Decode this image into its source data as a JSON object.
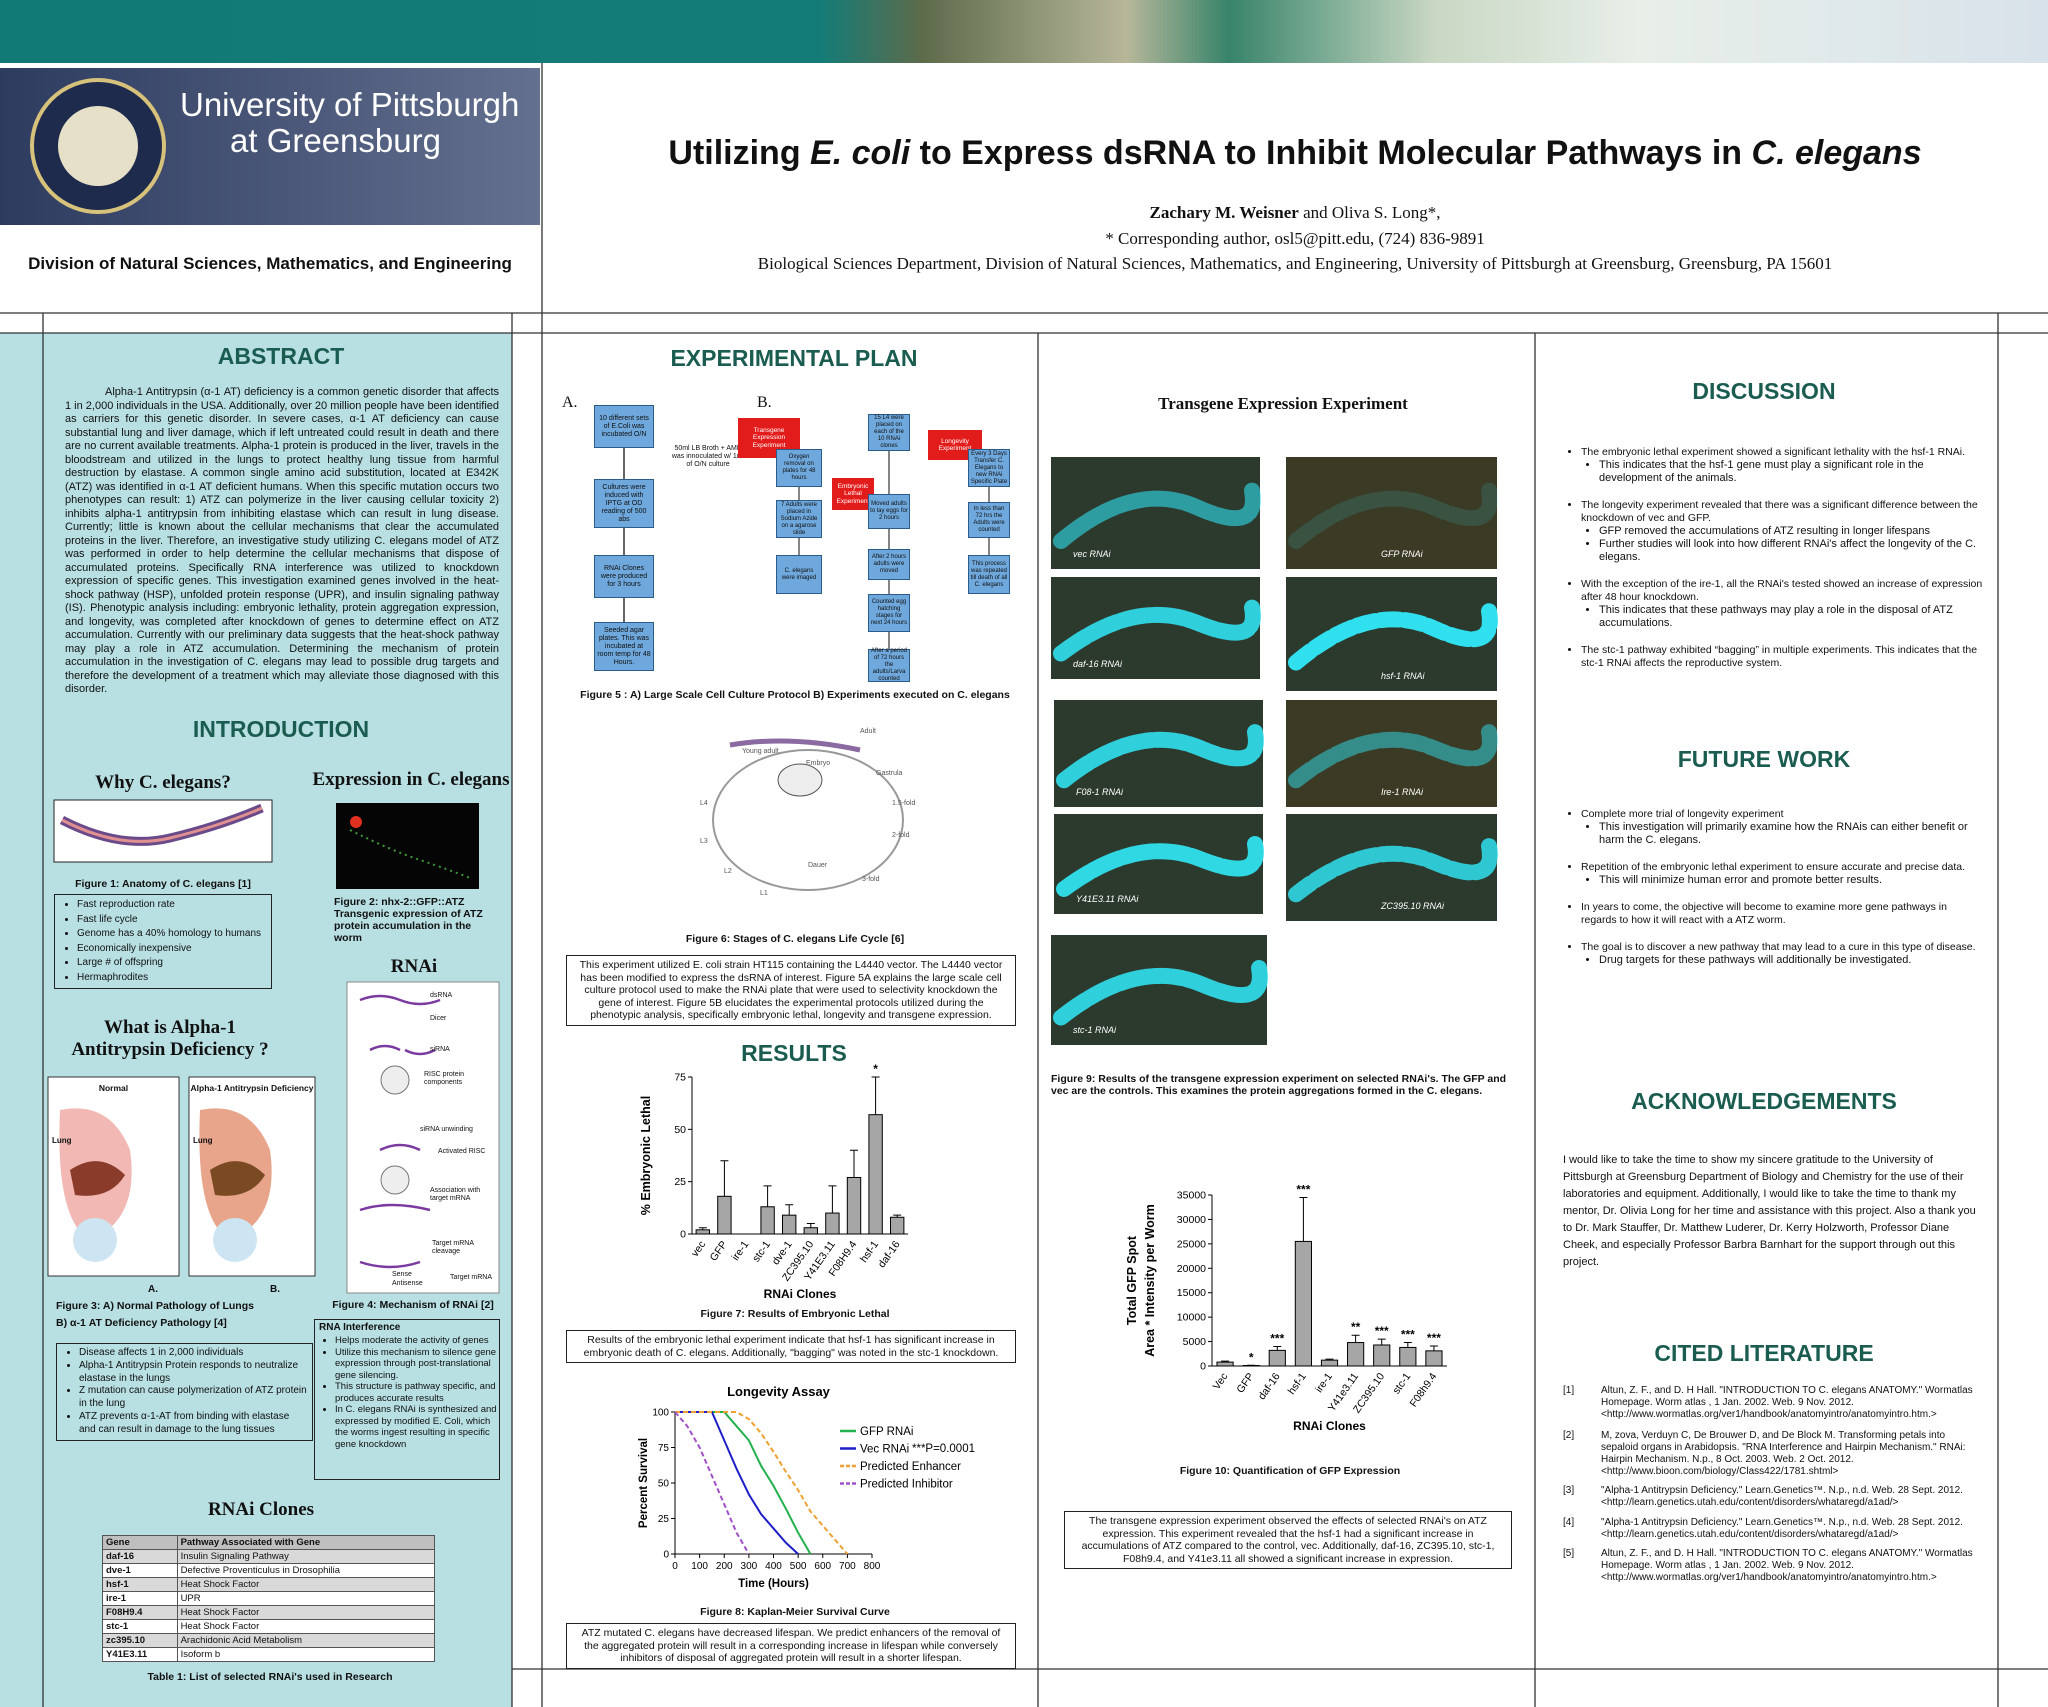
{
  "header": {
    "university_line1": "University of Pittsburgh",
    "university_line2": "at Greensburg",
    "division": "Division of Natural Sciences, Mathematics, and Engineering",
    "title_parts": [
      "Utilizing ",
      "E. coli",
      " to Express dsRNA to Inhibit Molecular Pathways in ",
      "C. elegans"
    ],
    "author_main": "Zachary M. Weisner",
    "author_rest": " and Oliva S. Long*,",
    "corresponding": "*  Corresponding author, osl5@pitt.edu, (724) 836-9891",
    "affiliation": "Biological Sciences Department, Division of Natural Sciences, Mathematics, and Engineering, University of Pittsburgh at Greensburg, Greensburg, PA 15601"
  },
  "abstract": {
    "heading": "ABSTRACT",
    "text": "Alpha-1 Antitrypsin (α-1 AT) deficiency is a common genetic disorder that affects 1 in 2,000 individuals in the USA.  Additionally, over 20 million people have been identified as carriers for this genetic disorder.  In severe cases, α-1 AT deficiency can cause substantial lung and liver damage, which if left untreated could result in death and there are no current available treatments.  Alpha-1 protein is produced in the liver, travels in the bloodstream and utilized in the lungs to protect healthy lung tissue from harmful destruction by elastase.  A common single amino acid substitution, located at E342K (ATZ) was identified in α-1 AT deficient humans.  When this specific mutation occurs two phenotypes can result:  1) ATZ can polymerize in the liver causing cellular toxicity 2) inhibits alpha-1 antitrypsin from inhibiting elastase which can result in lung disease.  Currently; little is known about the cellular mechanisms that clear the accumulated proteins in the liver.   Therefore, an investigative study utilizing C. elegans model of ATZ was performed in order to help determine the cellular mechanisms that dispose of accumulated proteins. Specifically RNA interference was utilized to knockdown expression of specific genes. This investigation examined genes involved in the heat-shock pathway (HSP), unfolded protein response (UPR), and insulin signaling pathway (IS). Phenotypic analysis including: embryonic lethality, protein aggregation expression, and longevity, was completed after knockdown of genes to determine effect on ATZ accumulation. Currently with our preliminary data suggests that the heat-shock pathway may play a role in ATZ accumulation. Determining the mechanism of protein accumulation in the investigation of C. elegans may lead to possible drug targets and therefore the development of a treatment which may alleviate those diagnosed with this disorder."
  },
  "introduction": {
    "heading": "INTRODUCTION",
    "why_heading": "Why C. elegans?",
    "fig1_caption": "Figure 1: Anatomy of C. elegans [1]",
    "why_items": [
      "Fast reproduction rate",
      "Fast life cycle",
      "Genome has a 40% homology to humans",
      "Economically inexpensive",
      "Large # of offspring",
      "Hermaphrodites"
    ],
    "expression_heading": "Expression in C. elegans",
    "fig2_caption": "Figure 2: nhx-2::GFP::ATZ Transgenic expression of ATZ protein accumulation in the worm",
    "rnai_heading": "RNAi",
    "rnai_labels": [
      "dsRNA",
      "Dicer",
      "siRNA",
      "RISC protein components",
      "siRNA unwinding",
      "Activated RISC",
      "Association with target mRNA",
      "Target mRNA cleavage",
      "Sense",
      "Antisense",
      "Target mRNA"
    ],
    "fig4_caption": "Figure 4: Mechanism of RNAi [2]",
    "alpha_heading_1": "What is Alpha-1",
    "alpha_heading_2": "Antitrypsin Deficiency ?",
    "lung_titles": [
      "Normal",
      "Alpha-1 Antitrypsin Deficiency"
    ],
    "lung_labels": [
      "Lung",
      "Lung"
    ],
    "panel_labels": [
      "A.",
      "B."
    ],
    "fig3_caption_1": "Figure 3: A) Normal Pathology of Lungs",
    "fig3_caption_2": "B) α-1 AT Deficiency Pathology [4]",
    "alpha_items": [
      "Disease affects 1 in 2,000 individuals",
      "Alpha-1 Antitrypsin Protein responds to neutralize elastase in the lungs",
      "Z mutation can cause polymerization of ATZ protein in the lung",
      "ATZ prevents α-1-AT from binding with elastase and can result in damage to the lung tissues"
    ],
    "rnai_box_title": "RNA Interference",
    "rnai_items": [
      "Helps moderate the activity of genes",
      "Utilize this mechanism to silence gene expression through post-translational gene silencing.",
      "This structure is pathway specific, and produces accurate results",
      "In C. elegans RNAi is synthesized and expressed by modified E. Coli, which the worms ingest resulting in specific gene knockdown"
    ],
    "clones_heading": "RNAi Clones",
    "table_header": [
      "Gene",
      "Pathway Associated with Gene"
    ],
    "table_rows": [
      [
        "daf-16",
        "Insulin Signaling Pathway"
      ],
      [
        "dve-1",
        "Defective Proventiculus in Drosophilia"
      ],
      [
        "hsf-1",
        "Heat Shock Factor"
      ],
      [
        "ire-1",
        "UPR"
      ],
      [
        "F08H9.4",
        "Heat Shock Factor"
      ],
      [
        "stc-1",
        "Heat Shock Factor"
      ],
      [
        "zc395.10",
        "Arachidonic Acid Metabolism"
      ],
      [
        "Y41E3.11",
        "Isoform b"
      ]
    ],
    "table_caption": "Table 1: List of selected RNAi's used in Research"
  },
  "plan": {
    "heading": "EXPERIMENTAL PLAN",
    "panel_labels": [
      "A.",
      "B."
    ],
    "flow_a": [
      "10 different sets of E.Coli was incubated O/N",
      "Cultures were induced with IPTG at OD reading of 500 abs",
      "RNAi Clones were produced for 3 hours",
      "Seeded agar plates. This was incubated at room temp for 48 Hours."
    ],
    "flow_a_note": "50ml LB Broth + AMP was innoculated w/ 1ml of O/N culture",
    "flags": [
      "Transgene Expression Experiment",
      "Embryonic Lethal Experiment",
      "Longevity Experiment"
    ],
    "flow_b": [
      "Oxygen removal on plates for 48 hours",
      "7 Adults were placed in Sodium Azide on a agarose slide",
      "C. elegans were imaged",
      "15 L4 were placed on each of the 10 RNAi clones",
      "Moved adults to lay eggs for 2 hours",
      "After 2 hours adults were moved",
      "Counted egg hatching stages for next 24 hours",
      "After a period of 72 hours the adults/Larva counted",
      "Every 3 Days Transfer C. Elegans to new RNAi Specific Plate",
      "In less than 72 hrs the Adults were counted",
      "This process was repeated till death of all C. elegans"
    ],
    "fig5_caption": "Figure 5 : A) Large Scale Cell Culture Protocol  B) Experiments executed on C. elegans",
    "cycle_labels": [
      "Adult",
      "Young adult",
      "L4",
      "L3",
      "L2",
      "L1",
      "Dauer",
      "Embryo",
      "Gastrula",
      "1.5-fold",
      "2-fold",
      "3-fold"
    ],
    "fig6_caption": "Figure 6: Stages of C. elegans Life Cycle [6]",
    "text": "This experiment utilized E. coli strain HT115 containing the L4440 vector.  The L4440 vector has been modified to express the dsRNA of interest. Figure 5A explains the large scale cell culture protocol used to make the RNAi plate that were used to selectivity knockdown the gene of interest.  Figure 5B elucidates the experimental protocols utilized during the phenotypic analysis, specifically embryonic lethal, longevity and transgene expression."
  },
  "results": {
    "heading": "RESULTS",
    "fig7": {
      "type": "bar",
      "ylabel": "% Embryonic Lethal",
      "xlabel": "RNAi Clones",
      "categories": [
        "vec",
        "GFP",
        "ire-1",
        "stc-1",
        "dve-1",
        "ZC395.10",
        "Y41E3.11",
        "F08H9.4",
        "hsf-1",
        "daf-16"
      ],
      "values": [
        2,
        18,
        0,
        13,
        9,
        3,
        10,
        27,
        57,
        8
      ],
      "errors": [
        1,
        17,
        0,
        10,
        5,
        2,
        13,
        13,
        18,
        1
      ],
      "significance": [
        null,
        null,
        null,
        null,
        null,
        null,
        null,
        null,
        "*",
        null
      ],
      "ylim": [
        0,
        75
      ],
      "yticks": [
        0,
        25,
        50,
        75
      ],
      "color": "#a6a6a6"
    },
    "fig7_caption": "Figure 7: Results of Embryonic Lethal",
    "fig7_text": "Results of the embryonic lethal experiment indicate that hsf-1 has significant increase in embryonic death of C. elegans.  Additionally, \"bagging\" was noted in the stc-1 knockdown.",
    "fig8": {
      "type": "line",
      "title": "Longevity Assay",
      "xlabel": "Time (Hours)",
      "ylabel": "Percent Survival",
      "annotation": "***P=0.0001",
      "series": [
        {
          "name": "GFP RNAi",
          "color": "#22b14c",
          "dashed": false,
          "x": [
            0,
            200,
            250,
            300,
            350,
            400,
            450,
            500,
            550
          ],
          "values": [
            100,
            100,
            90,
            80,
            62,
            48,
            32,
            15,
            0
          ]
        },
        {
          "name": "Vec RNAi",
          "color": "#1f1fc8",
          "dashed": false,
          "x": [
            0,
            150,
            200,
            250,
            300,
            350,
            400,
            450,
            500
          ],
          "values": [
            100,
            100,
            80,
            60,
            42,
            28,
            18,
            8,
            0
          ]
        },
        {
          "name": "Predicted Enhancer",
          "color": "#f0a030",
          "dashed": true,
          "x": [
            0,
            250,
            300,
            350,
            400,
            450,
            500,
            550,
            600,
            650,
            700
          ],
          "values": [
            100,
            100,
            95,
            85,
            72,
            58,
            45,
            30,
            20,
            10,
            0
          ]
        },
        {
          "name": "Predicted Inhibitor",
          "color": "#a050c8",
          "dashed": true,
          "x": [
            0,
            50,
            100,
            150,
            200,
            250,
            300
          ],
          "values": [
            100,
            90,
            75,
            55,
            35,
            15,
            0
          ]
        }
      ],
      "xlim": [
        0,
        800
      ],
      "xticks": [
        0,
        100,
        200,
        300,
        400,
        500,
        600,
        700,
        800
      ],
      "ylim": [
        0,
        100
      ],
      "yticks": [
        0,
        25,
        50,
        75,
        100
      ]
    },
    "fig8_caption": "Figure 8: Kaplan-Meier Survival Curve",
    "fig8_text": "ATZ mutated C. elegans have decreased lifespan. We predict enhancers of the removal of the aggregated protein will result in a corresponding increase in lifespan while conversely inhibitors of disposal of aggregated protein will result in a shorter lifespan."
  },
  "transgene": {
    "heading": "Transgene Expression Experiment",
    "image_labels": [
      "vec RNAi",
      "GFP RNAi",
      "daf-16 RNAi",
      "hsf-1 RNAi",
      "F08-1 RNAi",
      "Ire-1 RNAi",
      "Y41E3.11 RNAi",
      "ZC395.10 RNAi",
      "stc-1 RNAi"
    ],
    "fig9_caption": "Figure 9:  Results of the transgene expression experiment on selected RNAi's.  The GFP and vec are the controls.  This examines the protein aggregations formed in the C. elegans.",
    "fig10": {
      "type": "bar",
      "ylabel_1": "Total GFP Spot",
      "ylabel_2": "Area * Intensity per Worm",
      "xlabel": "RNAi Clones",
      "categories": [
        "Vec",
        "GFP",
        "daf-16",
        "hsf-1",
        "ire-1",
        "Y41e3.11",
        "ZC395.10",
        "stc-1",
        "F08h9.4"
      ],
      "values": [
        800,
        100,
        3200,
        25500,
        1200,
        4800,
        4300,
        3800,
        3100
      ],
      "errors": [
        200,
        50,
        800,
        9000,
        200,
        1500,
        1200,
        1000,
        1000
      ],
      "significance": [
        null,
        "*",
        "***",
        "***",
        null,
        "**",
        "***",
        "***",
        "***"
      ],
      "ylim": [
        0,
        35000
      ],
      "yticks": [
        0,
        5000,
        10000,
        15000,
        20000,
        25000,
        30000,
        35000
      ],
      "color": "#a6a6a6"
    },
    "fig10_caption": "Figure 10:  Quantification of GFP Expression",
    "text": "The transgene expression experiment observed the effects of selected RNAi's on ATZ expression.  This experiment revealed that the hsf-1 had a significant increase in accumulations of ATZ compared to the control, vec.  Additionally, daf-16, ZC395.10, stc-1, F08h9.4, and Y41e3.11 all showed a significant increase in expression."
  },
  "discussion": {
    "heading": "DISCUSSION",
    "items": [
      {
        "text": "The embryonic lethal experiment showed a significant lethality with the hsf-1 RNAi.",
        "sub": [
          "This indicates that the hsf-1 gene must play a significant role in the development of the animals."
        ]
      },
      {
        "text": "The longevity experiment revealed that there was a significant difference between the knockdown of vec and GFP.",
        "sub": [
          "GFP removed the accumulations of ATZ resulting in longer lifespans",
          "Further studies will look into how different RNAi's affect the longevity of the C. elegans."
        ]
      },
      {
        "text": "With the exception of the ire-1, all the RNAi's tested showed an increase of expression after 48 hour knockdown.",
        "sub": [
          "This indicates that these pathways may play a role in the disposal of ATZ accumulations."
        ]
      },
      {
        "text": "The stc-1 pathway exhibited “bagging” in multiple experiments.  This indicates that the stc-1 RNAi affects the reproductive system.",
        "sub": []
      }
    ]
  },
  "future": {
    "heading": "FUTURE WORK",
    "items": [
      {
        "text": "Complete more trial of longevity experiment",
        "sub": [
          "This investigation will primarily examine how the RNAis can either benefit or harm the C. elegans."
        ]
      },
      {
        "text": "Repetition of the embryonic lethal experiment to ensure accurate and precise data.",
        "sub": [
          "This will minimize human error and promote better results."
        ]
      },
      {
        "text": "In years to come, the objective will become to examine more gene pathways in regards to how it will react with a ATZ worm.",
        "sub": []
      },
      {
        "text": "The goal is to discover a new pathway that may lead to a cure in this type of disease.",
        "sub": [
          "Drug targets for these pathways will additionally be investigated."
        ]
      }
    ]
  },
  "acknowledgements": {
    "heading": "ACKNOWLEDGEMENTS",
    "text": "I would like to take the time to show my sincere gratitude to the University of Pittsburgh at Greensburg Department of Biology and Chemistry for the use of their laboratories and equipment.  Additionally, I would like to take the time to thank my mentor, Dr. Olivia Long for her time and assistance with this project.  Also a thank you to Dr. Mark Stauffer, Dr. Matthew Luderer, Dr. Kerry Holzworth, Professor Diane Cheek, and especially Professor Barbra Barnhart for the support through out this project."
  },
  "literature": {
    "heading": "CITED LITERATURE",
    "refs": [
      {
        "num": "[1]",
        "text": "Altun, Z. F., and D. H Hall. \"INTRODUCTION TO C. elegans ANATOMY.\" Wormatlas Homepage. Worm atlas , 1 Jan. 2002. Web. 9 Nov. 2012. <http://www.wormatlas.org/ver1/handbook/anatomyintro/anatomyintro.htm.>"
      },
      {
        "num": "[2]",
        "text": "M, zova, Verduyn C, De Brouwer D, and De Block M. Transforming petals into sepaloid organs in Arabidopsis. \"RNA Interference and Hairpin Mechanism.\" RNAi: Hairpin Mechanism. N.p., 8 Oct. 2003. Web. 2 Oct. 2012. <http://www.bioon.com/biology/Class422/1781.shtml>"
      },
      {
        "num": "[3]",
        "text": "\"Alpha-1 Antitrypsin Deficiency.\" Learn.Genetics™. N.p., n.d. Web. 28 Sept. 2012. <http://learn.genetics.utah.edu/content/disorders/whataregd/a1ad/>"
      },
      {
        "num": "[4]",
        "text": "\"Alpha-1 Antitrypsin Deficiency.\" Learn.Genetics™. N.p., n.d. Web. 28 Sept. 2012. <http://learn.genetics.utah.edu/content/disorders/whataregd/a1ad/>"
      },
      {
        "num": "[5]",
        "text": "Altun, Z. F., and D. H Hall. \"INTRODUCTION TO C. elegans ANATOMY.\" Wormatlas Homepage. Worm atlas , 1 Jan. 2002. Web. 9 Nov. 2012. <http://www.wormatlas.org/ver1/handbook/anatomyintro/anatomyintro.htm.>"
      }
    ]
  }
}
